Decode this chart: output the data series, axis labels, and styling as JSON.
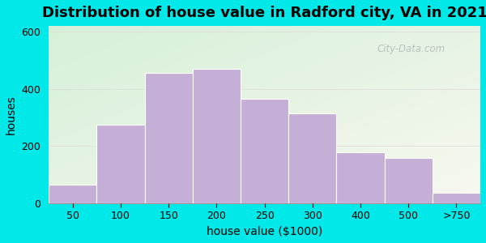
{
  "title": "Distribution of house value in Radford city, VA in 2021",
  "xlabel": "house value ($1000)",
  "ylabel": "houses",
  "bar_labels": [
    "50",
    "100",
    "150",
    "200",
    "250",
    "300",
    "400",
    "500",
    ">750"
  ],
  "bar_heights": [
    65,
    275,
    455,
    470,
    365,
    315,
    178,
    158,
    35
  ],
  "bar_color": "#c5afd6",
  "bar_edge_color": "#ffffff",
  "ylim": [
    0,
    620
  ],
  "yticks": [
    0,
    200,
    400,
    600
  ],
  "title_fontsize": 13,
  "label_fontsize": 10,
  "tick_fontsize": 9,
  "bg_outer": "#00e8e8",
  "bg_top_left": "#d6f0d8",
  "bg_bottom_right": "#f5f5ee",
  "watermark": "City-Data.com"
}
